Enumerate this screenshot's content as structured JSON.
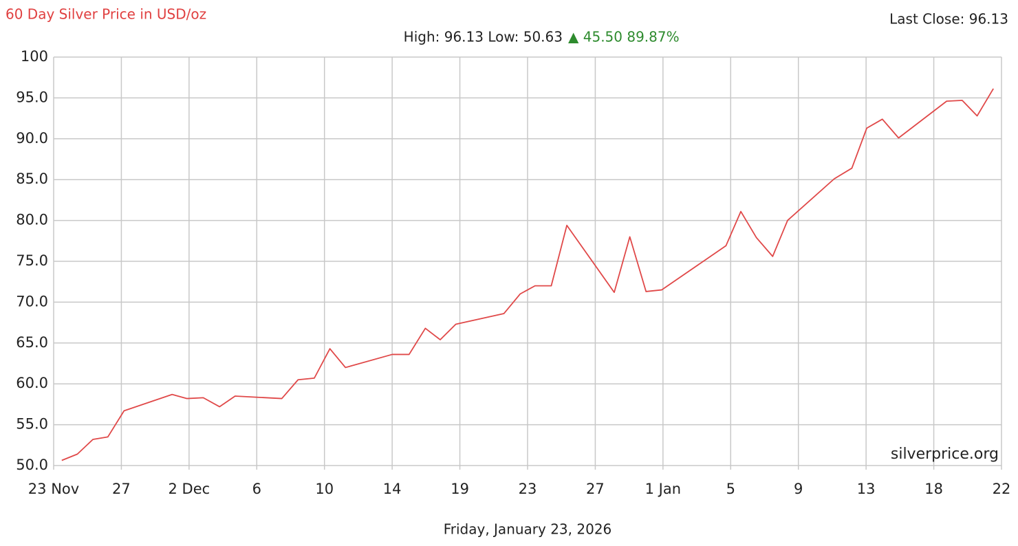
{
  "chart_data": {
    "type": "line",
    "title": "60 Day Silver Price in USD/oz",
    "last_close": "Last Close: 96.13",
    "summary": "High: 96.13 Low: 50.63",
    "change": "▲ 45.50 89.87%",
    "watermark": "silverprice.org",
    "footer": "Friday, January 23, 2026",
    "xlim": [
      0,
      14
    ],
    "xticks": [
      {
        "value": 0,
        "label": "23 Nov"
      },
      {
        "value": 1,
        "label": "27"
      },
      {
        "value": 2,
        "label": "2 Dec"
      },
      {
        "value": 3,
        "label": "6"
      },
      {
        "value": 4,
        "label": "10"
      },
      {
        "value": 5,
        "label": "14"
      },
      {
        "value": 6,
        "label": "19"
      },
      {
        "value": 7,
        "label": "23"
      },
      {
        "value": 8,
        "label": "27"
      },
      {
        "value": 9,
        "label": "1 Jan"
      },
      {
        "value": 10,
        "label": "5"
      },
      {
        "value": 11,
        "label": "9"
      },
      {
        "value": 12,
        "label": "13"
      },
      {
        "value": 13,
        "label": "18"
      },
      {
        "value": 14,
        "label": "22"
      }
    ],
    "ylim": [
      50,
      100
    ],
    "yticks": [
      {
        "value": 50,
        "label": "50.0"
      },
      {
        "value": 55,
        "label": "55.0"
      },
      {
        "value": 60,
        "label": "60.0"
      },
      {
        "value": 65,
        "label": "65.0"
      },
      {
        "value": 70,
        "label": "70.0"
      },
      {
        "value": 75,
        "label": "75.0"
      },
      {
        "value": 80,
        "label": "80.0"
      },
      {
        "value": 85,
        "label": "85.0"
      },
      {
        "value": 90,
        "label": "90.0"
      },
      {
        "value": 95,
        "label": "95.0"
      },
      100
    ],
    "grid": true,
    "x": [
      0.12,
      0.35,
      0.58,
      0.8,
      1.04,
      1.75,
      1.97,
      2.21,
      2.45,
      2.68,
      3.37,
      3.61,
      3.85,
      4.08,
      4.31,
      5.0,
      5.25,
      5.49,
      5.71,
      5.94,
      6.65,
      6.89,
      7.11,
      7.35,
      7.58,
      8.28,
      8.51,
      8.75,
      8.98,
      9.93,
      10.15,
      10.38,
      10.62,
      10.84,
      11.53,
      11.79,
      12.01,
      12.24,
      12.48,
      13.19,
      13.42,
      13.64,
      13.88
    ],
    "series": [
      {
        "color": "#e04848",
        "values": [
          50.63,
          51.4,
          53.2,
          53.5,
          56.7,
          58.7,
          58.2,
          58.3,
          57.2,
          58.5,
          58.2,
          60.5,
          60.7,
          64.3,
          62.0,
          63.6,
          63.6,
          66.8,
          65.4,
          67.3,
          68.6,
          71.0,
          72.0,
          72.0,
          79.4,
          71.2,
          78.0,
          71.3,
          71.5,
          76.9,
          81.1,
          77.9,
          75.6,
          80.0,
          85.1,
          86.4,
          91.3,
          92.4,
          90.1,
          94.6,
          94.7,
          92.8,
          96.13
        ]
      }
    ]
  }
}
